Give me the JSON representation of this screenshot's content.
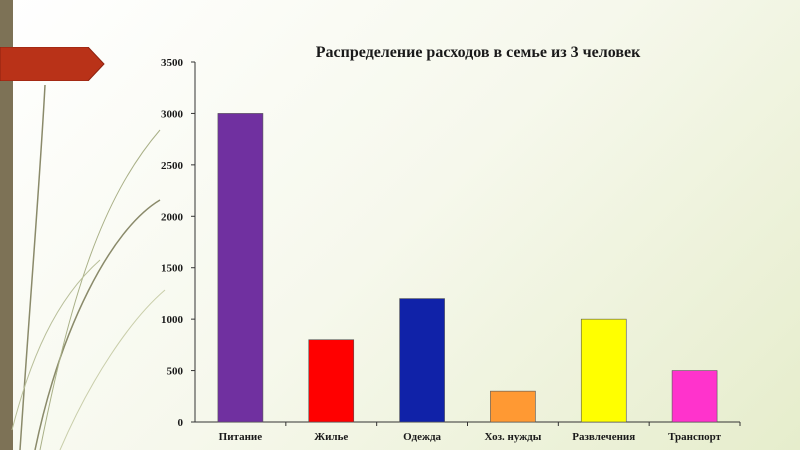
{
  "colors": {
    "side_strip": "#7d7256",
    "accent_arrow": "#b93218"
  },
  "chart_data": {
    "type": "bar",
    "title": "Распределение расходов в семье из 3 человек",
    "xlabel": "",
    "ylabel": "",
    "categories": [
      "Питание",
      "Жилье",
      "Одежда",
      "Хоз. нужды",
      "Развлечения",
      "Транспорт"
    ],
    "values": [
      3000,
      800,
      1200,
      300,
      1000,
      500
    ],
    "bar_colors": [
      "#7030a0",
      "#ff0000",
      "#1022a8",
      "#ff9933",
      "#ffff00",
      "#ff33cc"
    ],
    "ylim": [
      0,
      3500
    ],
    "yticks": [
      0,
      500,
      1000,
      1500,
      2000,
      2500,
      3000,
      3500
    ],
    "grid": false,
    "legend": "none"
  }
}
